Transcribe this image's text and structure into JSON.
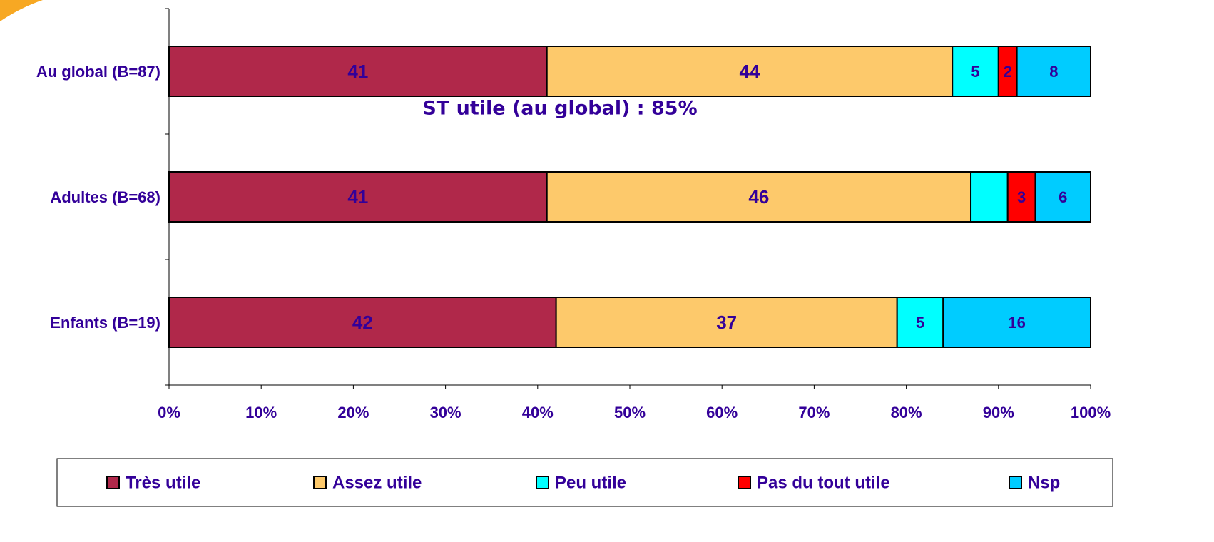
{
  "chart_data": {
    "type": "stacked_bar_horizontal",
    "categories": [
      "Au global (B=87)",
      "Adultes (B=68)",
      "Enfants (B=19)"
    ],
    "series": [
      {
        "name": "Très utile",
        "color": "#b0284a",
        "values": [
          41,
          41,
          42
        ]
      },
      {
        "name": "Assez utile",
        "color": "#fdc96b",
        "values": [
          44,
          46,
          37
        ]
      },
      {
        "name": "Peu utile",
        "color": "#00ffff",
        "values": [
          5,
          4,
          5
        ],
        "value_labels": [
          "5",
          null,
          "5"
        ]
      },
      {
        "name": "Pas du tout utile",
        "color": "#ff0000",
        "values": [
          2,
          3,
          0
        ],
        "value_labels": [
          "2",
          "3",
          null
        ]
      },
      {
        "name": "Nsp",
        "color": "#00ccff",
        "values": [
          8,
          6,
          16
        ]
      }
    ],
    "annotation": "ST utile (au global) : 85%",
    "xlim": [
      0,
      100
    ],
    "xticks": [
      {
        "value": 0,
        "label": "0%"
      },
      {
        "value": 10,
        "label": "10%"
      },
      {
        "value": 20,
        "label": "20%"
      },
      {
        "value": 30,
        "label": "30%"
      },
      {
        "value": 40,
        "label": "40%"
      },
      {
        "value": 50,
        "label": "50%"
      },
      {
        "value": 60,
        "label": "60%"
      },
      {
        "value": 70,
        "label": "70%"
      },
      {
        "value": 80,
        "label": "80%"
      },
      {
        "value": 90,
        "label": "90%"
      },
      {
        "value": 100,
        "label": "100%"
      }
    ],
    "legend": "bottom"
  }
}
